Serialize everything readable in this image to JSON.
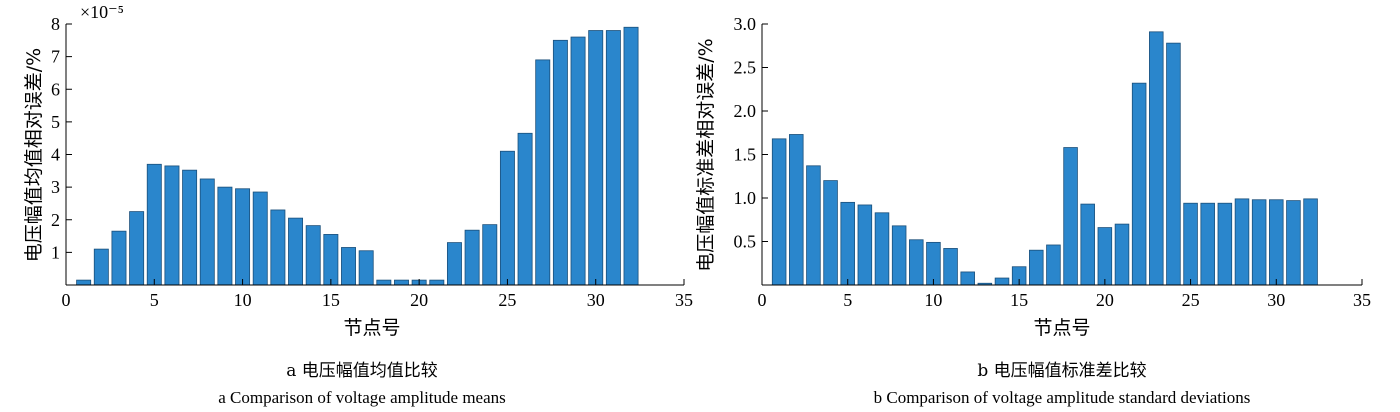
{
  "chart_data": [
    {
      "type": "bar",
      "panel": "a",
      "xlabel": "节点号",
      "ylabel": "电压幅值均值相对误差/%",
      "y_multiplier": "×10⁻⁵",
      "x_ticks": [
        0,
        5,
        10,
        15,
        20,
        25,
        30,
        35
      ],
      "y_ticks": [
        1,
        2,
        3,
        4,
        5,
        6,
        7,
        8
      ],
      "xlim": [
        0,
        35
      ],
      "ylim": [
        0,
        8
      ],
      "categories": [
        1,
        2,
        3,
        4,
        5,
        6,
        7,
        8,
        9,
        10,
        11,
        12,
        13,
        14,
        15,
        16,
        17,
        18,
        19,
        20,
        21,
        22,
        23,
        24,
        25,
        26,
        27,
        28,
        29,
        30,
        31,
        32
      ],
      "values": [
        0.15,
        1.1,
        1.65,
        2.25,
        3.7,
        3.65,
        3.52,
        3.25,
        3.0,
        2.95,
        2.85,
        2.3,
        2.05,
        1.82,
        1.55,
        1.15,
        1.05,
        0.15,
        0.15,
        0.15,
        0.15,
        1.3,
        1.68,
        1.85,
        4.1,
        4.65,
        6.9,
        7.5,
        7.6,
        7.8,
        7.8,
        7.9
      ],
      "caption_cn": "a  电压幅值均值比较",
      "caption_en": "a  Comparison of voltage amplitude means"
    },
    {
      "type": "bar",
      "panel": "b",
      "xlabel": "节点号",
      "ylabel": "电压幅值标准差相对误差/%",
      "x_ticks": [
        0,
        5,
        10,
        15,
        20,
        25,
        30,
        35
      ],
      "y_ticks": [
        "0.5",
        "1.0",
        "1.5",
        "2.0",
        "2.5",
        "3.0"
      ],
      "xlim": [
        0,
        35
      ],
      "ylim": [
        0,
        3.0
      ],
      "categories": [
        1,
        2,
        3,
        4,
        5,
        6,
        7,
        8,
        9,
        10,
        11,
        12,
        13,
        14,
        15,
        16,
        17,
        18,
        19,
        20,
        21,
        22,
        23,
        24,
        25,
        26,
        27,
        28,
        29,
        30,
        31,
        32
      ],
      "values": [
        1.68,
        1.73,
        1.37,
        1.2,
        0.95,
        0.92,
        0.83,
        0.68,
        0.52,
        0.49,
        0.42,
        0.15,
        0.02,
        0.08,
        0.21,
        0.4,
        0.46,
        1.58,
        0.93,
        0.66,
        0.7,
        2.32,
        2.91,
        2.78,
        0.94,
        0.94,
        0.94,
        0.99,
        0.98,
        0.98,
        0.97,
        0.99
      ],
      "caption_cn": "b  电压幅值标准差比较",
      "caption_en": "b  Comparison of voltage amplitude standard deviations"
    }
  ]
}
